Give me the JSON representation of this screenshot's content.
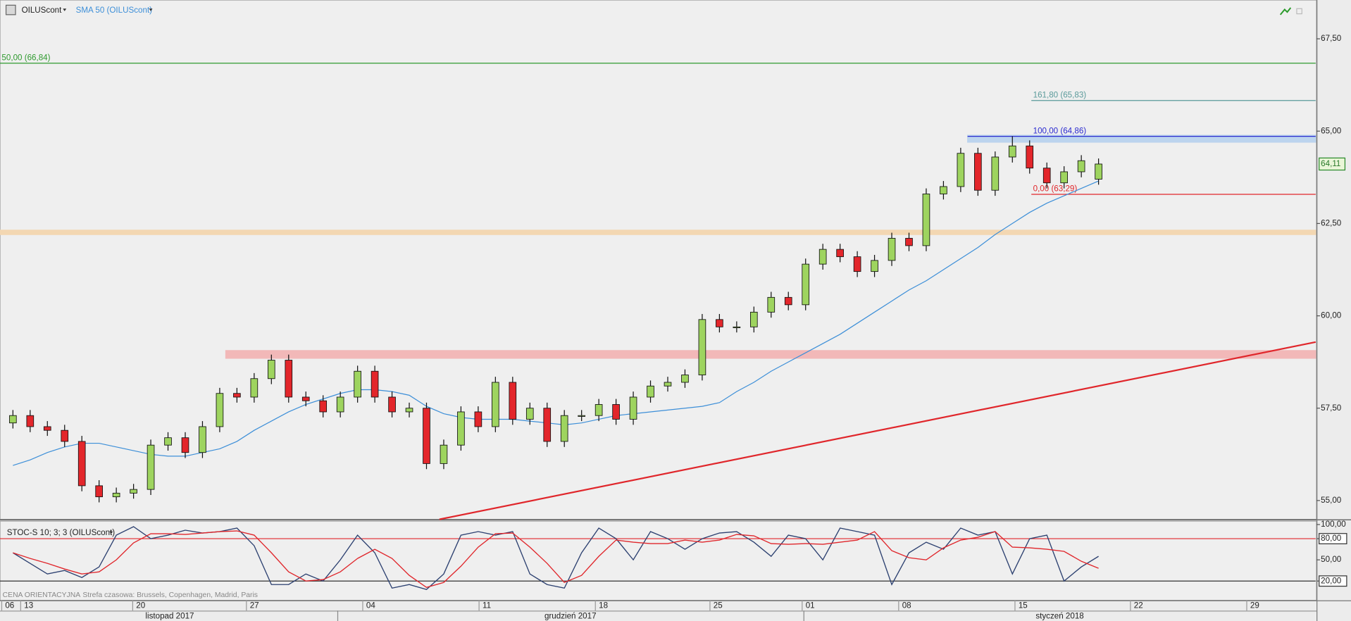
{
  "chart_data": [
    {
      "type": "candlestick",
      "title": "OILUScont",
      "open": [
        57.1,
        57.3,
        57.0,
        56.9,
        56.6,
        55.4,
        55.1,
        55.2,
        55.3,
        56.5,
        56.7,
        56.3,
        57.0,
        57.9,
        57.8,
        58.3,
        58.8,
        57.8,
        57.7,
        57.4,
        57.8,
        58.5,
        57.8,
        57.4,
        57.5,
        56.0,
        56.5,
        57.4,
        57.0,
        58.2,
        57.2,
        57.5,
        56.6,
        57.3,
        57.3,
        57.6,
        57.2,
        57.8,
        58.1,
        58.2,
        58.4,
        59.9,
        59.7,
        59.7,
        60.1,
        60.5,
        60.3,
        61.4,
        61.8,
        61.6,
        61.2,
        61.5,
        62.1,
        61.9,
        63.3,
        63.5,
        64.4,
        63.4,
        64.3,
        64.6,
        64.0,
        63.6,
        63.9,
        63.7
      ],
      "high": [
        57.45,
        57.45,
        57.15,
        57.05,
        56.75,
        55.55,
        55.35,
        55.45,
        56.65,
        56.85,
        56.85,
        57.15,
        58.05,
        58.05,
        58.45,
        58.95,
        58.95,
        57.95,
        57.85,
        57.95,
        58.65,
        58.65,
        57.95,
        57.65,
        57.65,
        56.65,
        57.55,
        57.55,
        58.35,
        58.35,
        57.65,
        57.65,
        57.45,
        57.45,
        57.75,
        57.75,
        57.95,
        58.25,
        58.35,
        58.55,
        60.05,
        60.05,
        59.85,
        60.25,
        60.65,
        60.65,
        61.55,
        61.95,
        61.95,
        61.75,
        61.65,
        62.25,
        62.25,
        63.45,
        63.65,
        64.55,
        64.55,
        64.45,
        64.86,
        64.75,
        64.15,
        64.05,
        64.35,
        64.26
      ],
      "low": [
        56.95,
        56.85,
        56.75,
        56.45,
        55.25,
        54.95,
        54.95,
        55.05,
        55.15,
        56.35,
        56.15,
        56.15,
        56.85,
        57.65,
        57.65,
        58.15,
        57.65,
        57.55,
        57.25,
        57.25,
        57.65,
        57.65,
        57.25,
        57.25,
        55.85,
        55.85,
        56.35,
        56.85,
        56.85,
        57.05,
        57.05,
        56.45,
        56.45,
        57.15,
        57.15,
        57.05,
        57.05,
        57.65,
        57.95,
        58.05,
        58.25,
        59.55,
        59.55,
        59.55,
        59.95,
        60.15,
        60.15,
        61.25,
        61.45,
        61.05,
        61.05,
        61.35,
        61.75,
        61.75,
        63.15,
        63.35,
        63.25,
        63.25,
        64.15,
        63.85,
        63.45,
        63.45,
        63.75,
        63.55
      ],
      "close": [
        57.3,
        57.0,
        56.9,
        56.6,
        55.4,
        55.1,
        55.2,
        55.3,
        56.5,
        56.7,
        56.3,
        57.0,
        57.9,
        57.8,
        58.3,
        58.8,
        57.8,
        57.7,
        57.4,
        57.8,
        58.5,
        57.8,
        57.4,
        57.5,
        56.0,
        56.5,
        57.4,
        57.0,
        58.2,
        57.2,
        57.5,
        56.6,
        57.3,
        57.3,
        57.6,
        57.2,
        57.8,
        58.1,
        58.2,
        58.4,
        59.9,
        59.7,
        59.7,
        60.1,
        60.5,
        60.3,
        61.4,
        61.8,
        61.6,
        61.2,
        61.5,
        62.1,
        61.9,
        63.3,
        63.5,
        64.4,
        63.4,
        64.3,
        64.6,
        64.0,
        63.6,
        63.9,
        64.2,
        64.11
      ],
      "up_color": "#9ed45f",
      "down_color": "#e3262b",
      "series": [
        {
          "name": "SMA 50 (OILUScont)",
          "color": "#3d8fd8",
          "values": [
            55.95,
            56.1,
            56.3,
            56.45,
            56.55,
            56.55,
            56.45,
            56.35,
            56.25,
            56.2,
            56.2,
            56.3,
            56.4,
            56.6,
            56.9,
            57.15,
            57.4,
            57.6,
            57.75,
            57.9,
            58.0,
            58.0,
            57.95,
            57.85,
            57.55,
            57.35,
            57.25,
            57.2,
            57.2,
            57.2,
            57.15,
            57.1,
            57.05,
            57.1,
            57.2,
            57.3,
            57.35,
            57.4,
            57.45,
            57.5,
            57.55,
            57.65,
            57.95,
            58.2,
            58.5,
            58.75,
            59.0,
            59.25,
            59.5,
            59.8,
            60.1,
            60.4,
            60.7,
            60.95,
            61.25,
            61.55,
            61.85,
            62.2,
            62.5,
            62.8,
            63.05,
            63.25,
            63.45,
            63.65
          ]
        }
      ],
      "ylim": [
        54.49,
        68.55
      ],
      "yticks": [
        {
          "value": 55,
          "label": "55,00"
        },
        {
          "value": 57.5,
          "label": "57,50"
        },
        {
          "value": 60,
          "label": "60,00"
        },
        {
          "value": 62.5,
          "label": "62,50"
        },
        {
          "value": 65,
          "label": "65,00"
        },
        {
          "value": 67.5,
          "label": "67,50"
        }
      ],
      "levels": [
        {
          "label": "50,00 (66,84)",
          "value": 66.84,
          "color": "#2f9a2f"
        },
        {
          "label": "161,80 (65,83)",
          "value": 65.83,
          "color": "#5a9a9a"
        },
        {
          "label": "100,00 (64,86)",
          "value": 64.86,
          "color": "#2a2ad0"
        },
        {
          "label": "0,00 (63,29)",
          "value": 63.29,
          "color": "#e0262b"
        }
      ],
      "zones": [
        {
          "from": 62.2,
          "to": 62.32,
          "color": "#f3d7b2"
        },
        {
          "from": 58.85,
          "to": 59.06,
          "color": "#f2b8b8"
        },
        {
          "from": 64.7,
          "to": 64.89,
          "color": "#bcd4ee"
        }
      ],
      "trendline": {
        "from": 54.49,
        "to": 59.29,
        "color": "#e0262b"
      },
      "last_price": {
        "value": 64.11,
        "label": "64,11"
      }
    },
    {
      "type": "line",
      "title": "STOC-S 10; 3; 3 (OILUScont)",
      "series": [
        {
          "color": "#2c4070",
          "values": [
            60,
            45,
            30,
            35,
            25,
            40,
            85,
            97,
            80,
            85,
            92,
            88,
            90,
            95,
            70,
            15,
            15,
            30,
            20,
            50,
            85,
            60,
            10,
            15,
            8,
            30,
            85,
            90,
            85,
            90,
            30,
            15,
            10,
            60,
            95,
            80,
            50,
            90,
            80,
            65,
            80,
            88,
            90,
            75,
            55,
            85,
            80,
            50,
            95,
            90,
            85,
            15,
            60,
            75,
            65,
            95,
            85,
            90,
            30,
            80,
            85,
            20,
            40,
            55
          ]
        },
        {
          "color": "#e0262b",
          "values": [
            60,
            52,
            45,
            37,
            30,
            33,
            50,
            74,
            87,
            87,
            86,
            88,
            90,
            91,
            85,
            60,
            33,
            20,
            22,
            33,
            52,
            65,
            52,
            28,
            11,
            18,
            41,
            68,
            87,
            88,
            68,
            45,
            18,
            28,
            55,
            78,
            75,
            73,
            73,
            78,
            75,
            78,
            86,
            84,
            73,
            72,
            73,
            72,
            75,
            78,
            90,
            63,
            53,
            50,
            67,
            78,
            82,
            90,
            68,
            67,
            65,
            62,
            48,
            38
          ]
        }
      ],
      "ylim": [
        -7.3,
        104.9
      ],
      "yticks": [
        {
          "value": 100,
          "label": "100,00"
        },
        {
          "value": 80,
          "label": "80,00"
        },
        {
          "value": 50,
          "label": "50,00"
        },
        {
          "value": 20,
          "label": "20,00"
        }
      ],
      "levels": [
        {
          "value": 80,
          "color": "#e0262b"
        },
        {
          "value": 20,
          "color": "#333333"
        }
      ]
    }
  ],
  "time_axis": {
    "days": [
      "06",
      "13",
      "20",
      "27",
      "04",
      "11",
      "18",
      "25",
      "01",
      "08",
      "15",
      "22",
      "29"
    ],
    "months": [
      "listopad 2017",
      "grudzień 2017",
      "styczeń 2018"
    ]
  },
  "footer": {
    "price_type": "CENA ORIENTACYJNA",
    "timezone": "Strefa czasowa: Brussels, Copenhagen, Madrid, Paris"
  }
}
